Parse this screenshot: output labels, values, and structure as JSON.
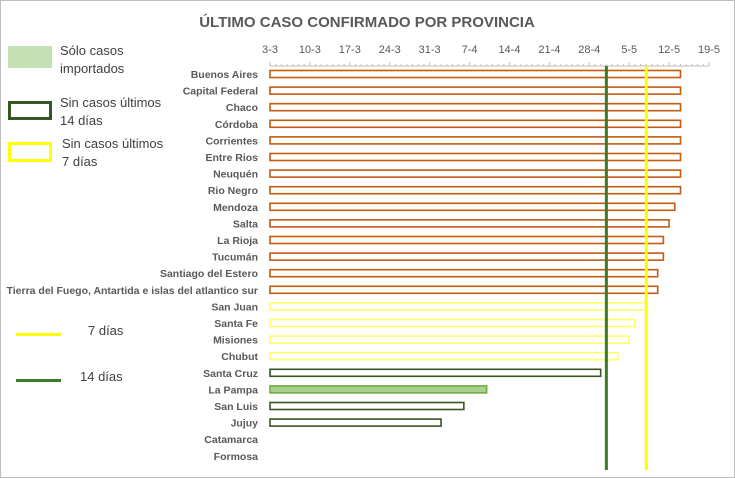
{
  "chart_data": {
    "type": "bar",
    "title": "ÚLTIMO CASO CONFIRMADO POR PROVINCIA",
    "xlabel": "",
    "ylabel": "",
    "x_axis_position": "top",
    "grid": false,
    "date_tick_labels": [
      "3-3",
      "10-3",
      "17-3",
      "24-3",
      "31-3",
      "7-4",
      "14-4",
      "21-4",
      "28-4",
      "5-5",
      "12-5",
      "19-5"
    ],
    "x_range": [
      "2020-03-03",
      "2020-05-19"
    ],
    "categories": [
      "Buenos Aires",
      "Capital Federal",
      "Chaco",
      "Córdoba",
      "Corrientes",
      "Entre Rios",
      "Neuquén",
      "Rio Negro",
      "Mendoza",
      "Salta",
      "La Rioja",
      "Tucumán",
      "Santiago del Estero",
      "Tierra del Fuego, Antartida e islas del atlantico sur",
      "San Juan",
      "Santa Fe",
      "Misiones",
      "Chubut",
      "Santa Cruz",
      "La Pampa",
      "San Luis",
      "Jujuy",
      "Catamarca",
      "Formosa"
    ],
    "values": [
      "2020-05-14",
      "2020-05-14",
      "2020-05-14",
      "2020-05-14",
      "2020-05-14",
      "2020-05-14",
      "2020-05-14",
      "2020-05-14",
      "2020-05-13",
      "2020-05-12",
      "2020-05-11",
      "2020-05-11",
      "2020-05-10",
      "2020-05-10",
      "2020-05-08",
      "2020-05-06",
      "2020-05-05",
      "2020-05-03",
      "2020-04-30",
      "2020-04-10",
      "2020-04-06",
      "2020-04-02",
      null,
      null
    ],
    "bar_category": [
      "cases",
      "cases",
      "cases",
      "cases",
      "cases",
      "cases",
      "cases",
      "cases",
      "cases",
      "cases",
      "cases",
      "cases",
      "cases",
      "cases",
      "no7",
      "no7",
      "no7",
      "no7",
      "no14",
      "imported",
      "no14",
      "no14",
      "none",
      "none"
    ],
    "reference_lines": [
      {
        "label": "7 días",
        "date": "2020-05-08",
        "color": "#ffff00"
      },
      {
        "label": "14 días",
        "date": "2020-05-01",
        "color": "#3d7b2a"
      }
    ],
    "legend_position": "left",
    "colors": {
      "cases_outline": "#c55a11",
      "no7_outline": "#ffff66",
      "no14_outline": "#375623",
      "imported_fill": "#a9d18e",
      "imported_outline": "#70ad47",
      "line7": "#ffff00",
      "line14": "#3d7b2a",
      "text": "#595959",
      "axis": "#bfbfbf"
    }
  },
  "legend": {
    "boxes": [
      {
        "label_1": "Sólo casos",
        "label_2": "importados",
        "style": "imported"
      },
      {
        "label_1": "Sin casos últimos",
        "label_2": "14 días",
        "style": "no14"
      },
      {
        "label_1": "Sin casos últimos",
        "label_2": "7 días",
        "style": "no7"
      }
    ],
    "lines": [
      {
        "label": "7 días",
        "color": "#ffff00"
      },
      {
        "label": "14 días",
        "color": "#3d7b2a"
      }
    ]
  }
}
